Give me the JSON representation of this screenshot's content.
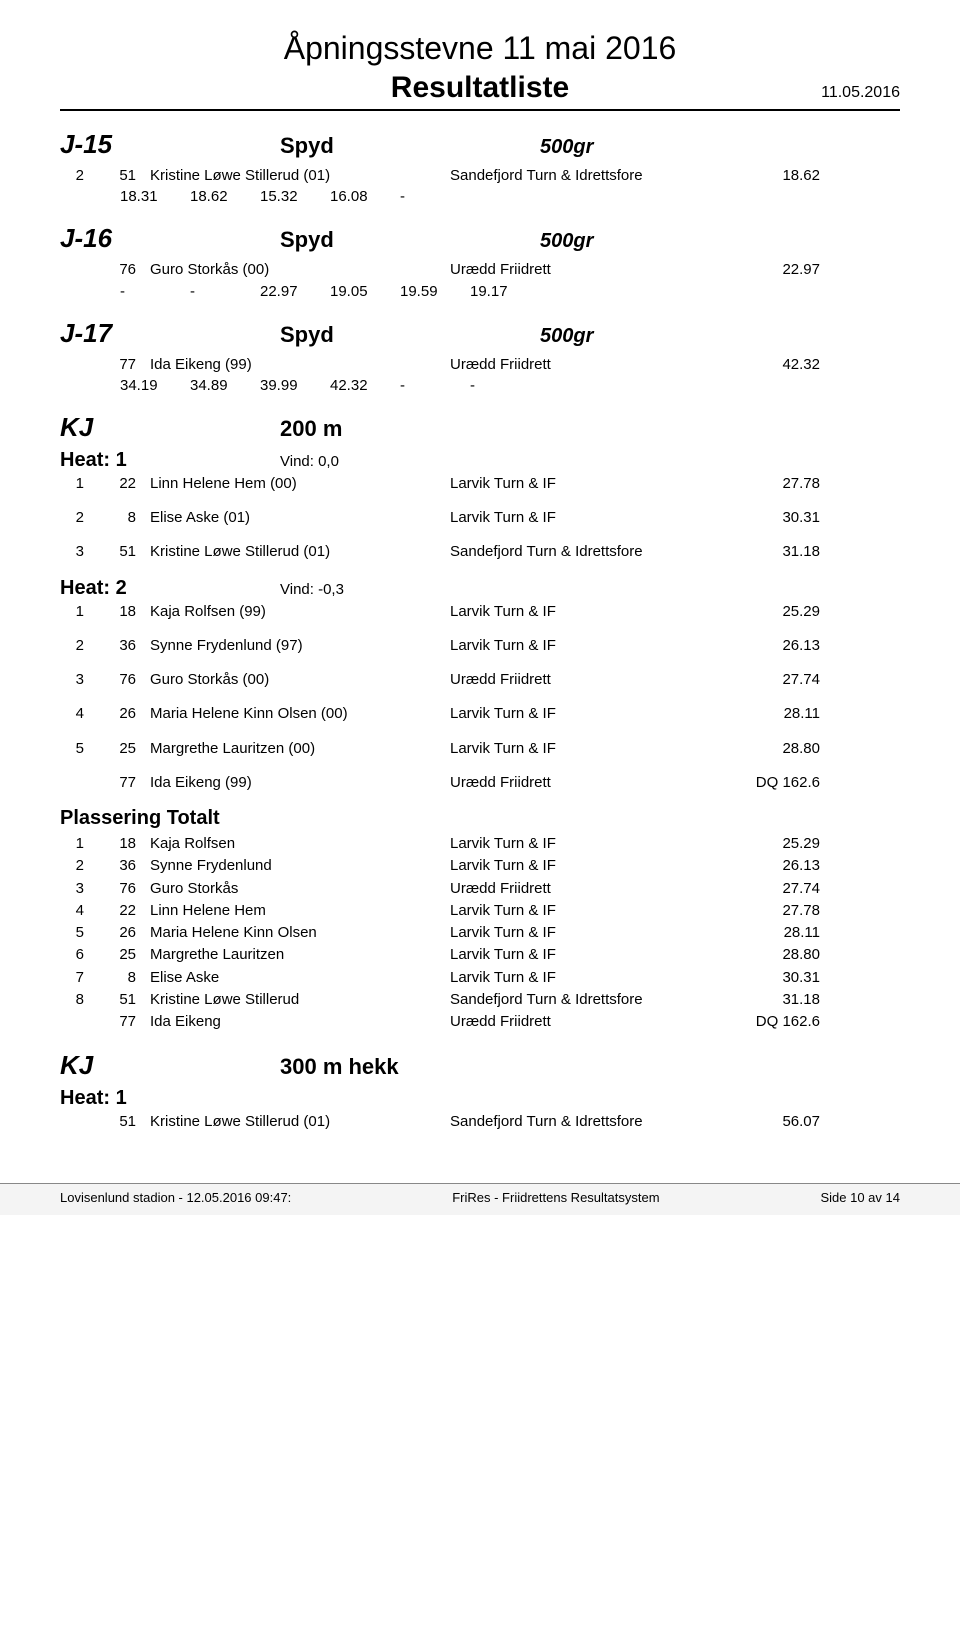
{
  "doc_title": "Åpningsstevne 11 mai 2016",
  "subtitle": "Resultatliste",
  "date": "11.05.2016",
  "events": [
    {
      "category": "J-15",
      "discipline": "Spyd",
      "spec": "500gr",
      "inline_header": true,
      "rows": [
        {
          "place": "2",
          "bib": "51",
          "name": "Kristine Løwe Stillerud (01)",
          "club": "Sandefjord Turn & Idrettsfore",
          "result": "18.62",
          "attempts": [
            "18.31",
            "18.62",
            "15.32",
            "16.08",
            "-",
            ""
          ]
        }
      ]
    },
    {
      "category": "J-16",
      "discipline": "Spyd",
      "spec": "500gr",
      "rows": [
        {
          "place": "",
          "bib": "76",
          "name": "Guro Storkås (00)",
          "club": "Urædd Friidrett",
          "result": "22.97",
          "attempts": [
            "-",
            "-",
            "22.97",
            "19.05",
            "19.59",
            "19.17"
          ]
        }
      ]
    },
    {
      "category": "J-17",
      "discipline": "Spyd",
      "spec": "500gr",
      "rows": [
        {
          "place": "",
          "bib": "77",
          "name": "Ida Eikeng (99)",
          "club": "Urædd Friidrett",
          "result": "42.32",
          "attempts": [
            "34.19",
            "34.89",
            "39.99",
            "42.32",
            "-",
            "-"
          ]
        }
      ]
    },
    {
      "category": "KJ",
      "discipline": "200 m",
      "spec": "",
      "heats": [
        {
          "label": "Heat: 1",
          "wind": "Vind: 0,0",
          "rows": [
            {
              "place": "1",
              "bib": "22",
              "name": "Linn Helene Hem (00)",
              "club": "Larvik Turn & IF",
              "result": "27.78",
              "spaced": true
            },
            {
              "place": "2",
              "bib": "8",
              "name": "Elise Aske (01)",
              "club": "Larvik Turn & IF",
              "result": "30.31",
              "spaced": true
            },
            {
              "place": "3",
              "bib": "51",
              "name": "Kristine Løwe Stillerud (01)",
              "club": "Sandefjord Turn & Idrettsfore",
              "result": "31.18",
              "spaced": true
            }
          ]
        },
        {
          "label": "Heat: 2",
          "wind": "Vind: -0,3",
          "rows": [
            {
              "place": "1",
              "bib": "18",
              "name": "Kaja Rolfsen (99)",
              "club": "Larvik Turn & IF",
              "result": "25.29",
              "spaced": true
            },
            {
              "place": "2",
              "bib": "36",
              "name": "Synne Frydenlund (97)",
              "club": "Larvik Turn & IF",
              "result": "26.13",
              "spaced": true
            },
            {
              "place": "3",
              "bib": "76",
              "name": "Guro Storkås (00)",
              "club": "Urædd Friidrett",
              "result": "27.74",
              "spaced": true
            },
            {
              "place": "4",
              "bib": "26",
              "name": "Maria Helene Kinn Olsen (00)",
              "club": "Larvik Turn & IF",
              "result": "28.11",
              "spaced": true
            },
            {
              "place": "5",
              "bib": "25",
              "name": "Margrethe Lauritzen (00)",
              "club": "Larvik Turn & IF",
              "result": "28.80",
              "spaced": true
            },
            {
              "place": "",
              "bib": "77",
              "name": "Ida Eikeng (99)",
              "club": "Urædd Friidrett",
              "result": "DQ 162.6",
              "spaced": true
            }
          ]
        }
      ],
      "totals_label": "Plassering Totalt",
      "totals": [
        {
          "place": "1",
          "bib": "18",
          "name": "Kaja Rolfsen",
          "club": "Larvik Turn & IF",
          "result": "25.29"
        },
        {
          "place": "2",
          "bib": "36",
          "name": "Synne Frydenlund",
          "club": "Larvik Turn & IF",
          "result": "26.13"
        },
        {
          "place": "3",
          "bib": "76",
          "name": "Guro Storkås",
          "club": "Urædd Friidrett",
          "result": "27.74"
        },
        {
          "place": "4",
          "bib": "22",
          "name": "Linn Helene Hem",
          "club": "Larvik Turn & IF",
          "result": "27.78"
        },
        {
          "place": "5",
          "bib": "26",
          "name": "Maria Helene Kinn Olsen",
          "club": "Larvik Turn & IF",
          "result": "28.11"
        },
        {
          "place": "6",
          "bib": "25",
          "name": "Margrethe Lauritzen",
          "club": "Larvik Turn & IF",
          "result": "28.80"
        },
        {
          "place": "7",
          "bib": "8",
          "name": "Elise Aske",
          "club": "Larvik Turn & IF",
          "result": "30.31"
        },
        {
          "place": "8",
          "bib": "51",
          "name": "Kristine Løwe Stillerud",
          "club": "Sandefjord Turn & Idrettsfore",
          "result": "31.18"
        },
        {
          "place": "",
          "bib": "77",
          "name": "Ida Eikeng",
          "club": "Urædd Friidrett",
          "result": "DQ 162.6"
        }
      ]
    },
    {
      "category": "KJ",
      "discipline": "300 m hekk",
      "spec": "",
      "heats": [
        {
          "label": "Heat: 1",
          "wind": "",
          "rows": [
            {
              "place": "",
              "bib": "51",
              "name": "Kristine Løwe Stillerud (01)",
              "club": "Sandefjord Turn & Idrettsfore",
              "result": "56.07"
            }
          ]
        }
      ]
    }
  ],
  "footer": {
    "left": "Lovisenlund stadion - 12.05.2016 09:47:",
    "mid": "FriRes - Friidrettens Resultatsystem",
    "right": "Side 10 av 14"
  }
}
